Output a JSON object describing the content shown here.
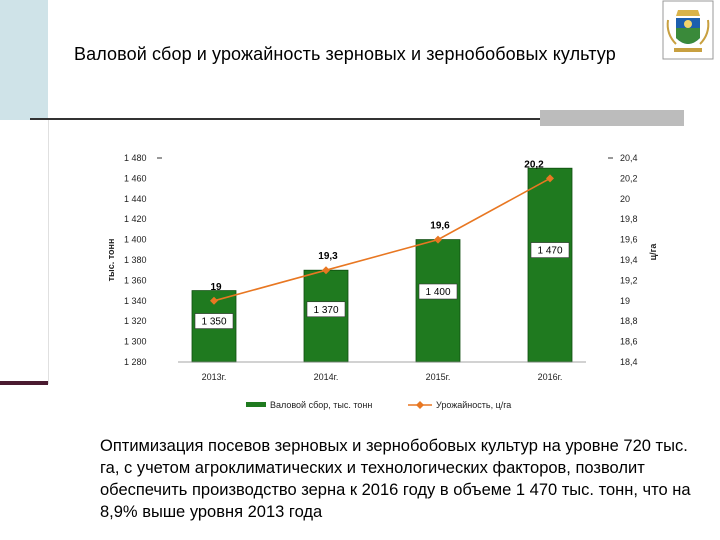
{
  "page": {
    "title": "Валовой сбор и урожайность зерновых и зернобобовых культур",
    "caption": "Оптимизация посевов зерновых и зернобобовых культур на уровне 720 тыс. га, с учетом агроклиматических и технологических факторов, позволит обеспечить производство зерна к 2016 году в объеме 1 470 тыс. тонн, что на 8,9% выше уровня 2013 года",
    "emblem_icon": "coat-of-arms-icon"
  },
  "chart_data": {
    "type": "bar+line",
    "categories": [
      "2013г.",
      "2014г.",
      "2015г.",
      "2016г."
    ],
    "series": [
      {
        "name": "Валовой сбор, тыс. тонн",
        "type": "bar",
        "axis": "left",
        "values": [
          1350,
          1370,
          1400,
          1470
        ],
        "labels": [
          "1 350",
          "1 370",
          "1 400",
          "1 470"
        ],
        "color": "#1f7a1f"
      },
      {
        "name": "Урожайность, ц/га",
        "type": "line",
        "axis": "right",
        "values": [
          19,
          19.3,
          19.6,
          20.2
        ],
        "labels": [
          "19",
          "19,3",
          "19,6",
          "20,2"
        ],
        "color": "#e87722"
      }
    ],
    "ylabel": "тыс. тонн",
    "y2label": "ц/га",
    "ylim": [
      1280,
      1480
    ],
    "y2lim": [
      18.4,
      20.4
    ],
    "yticks": [
      "1 480",
      "1 460",
      "1 440",
      "1 420",
      "1 400",
      "1 380",
      "1 360",
      "1 340",
      "1 320",
      "1 300",
      "1 280"
    ],
    "y2ticks": [
      "20,4",
      "20,2",
      "20",
      "19,8",
      "19,6",
      "19,4",
      "19,2",
      "19",
      "18,8",
      "18,6",
      "18,4"
    ],
    "legend_position": "bottom",
    "grid": false
  }
}
